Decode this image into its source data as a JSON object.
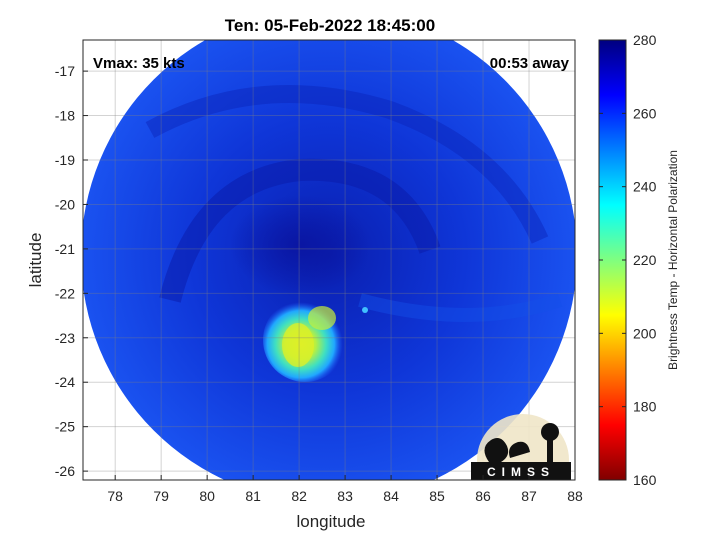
{
  "title": "Ten: 05-Feb-2022 18:45:00",
  "annotations": {
    "vmax": "Vmax: 35 kts",
    "time_away": "00:53 away"
  },
  "logo_text": "CIMSS",
  "chart_data": {
    "type": "heatmap",
    "xlabel": "longitude",
    "ylabel": "latitude",
    "xlim": [
      77.3,
      88
    ],
    "ylim": [
      -26.2,
      -16.3
    ],
    "xticks": [
      78,
      79,
      80,
      81,
      82,
      83,
      84,
      85,
      86,
      87,
      88
    ],
    "yticks": [
      -17,
      -18,
      -19,
      -20,
      -21,
      -22,
      -23,
      -24,
      -25,
      -26
    ],
    "grid": true,
    "swath_center": [
      82.7,
      -21.3
    ],
    "swath_radius_deg_lon": 5.35,
    "warm_region": {
      "center": [
        82.2,
        -22.9
      ],
      "min_brightness_temp": 196
    },
    "colorbar": {
      "label": "Brightness Temp - Horizontal Polarization",
      "range": [
        160,
        280
      ],
      "ticks": [
        160,
        180,
        200,
        220,
        240,
        260,
        280
      ],
      "colormap": "jet"
    }
  }
}
